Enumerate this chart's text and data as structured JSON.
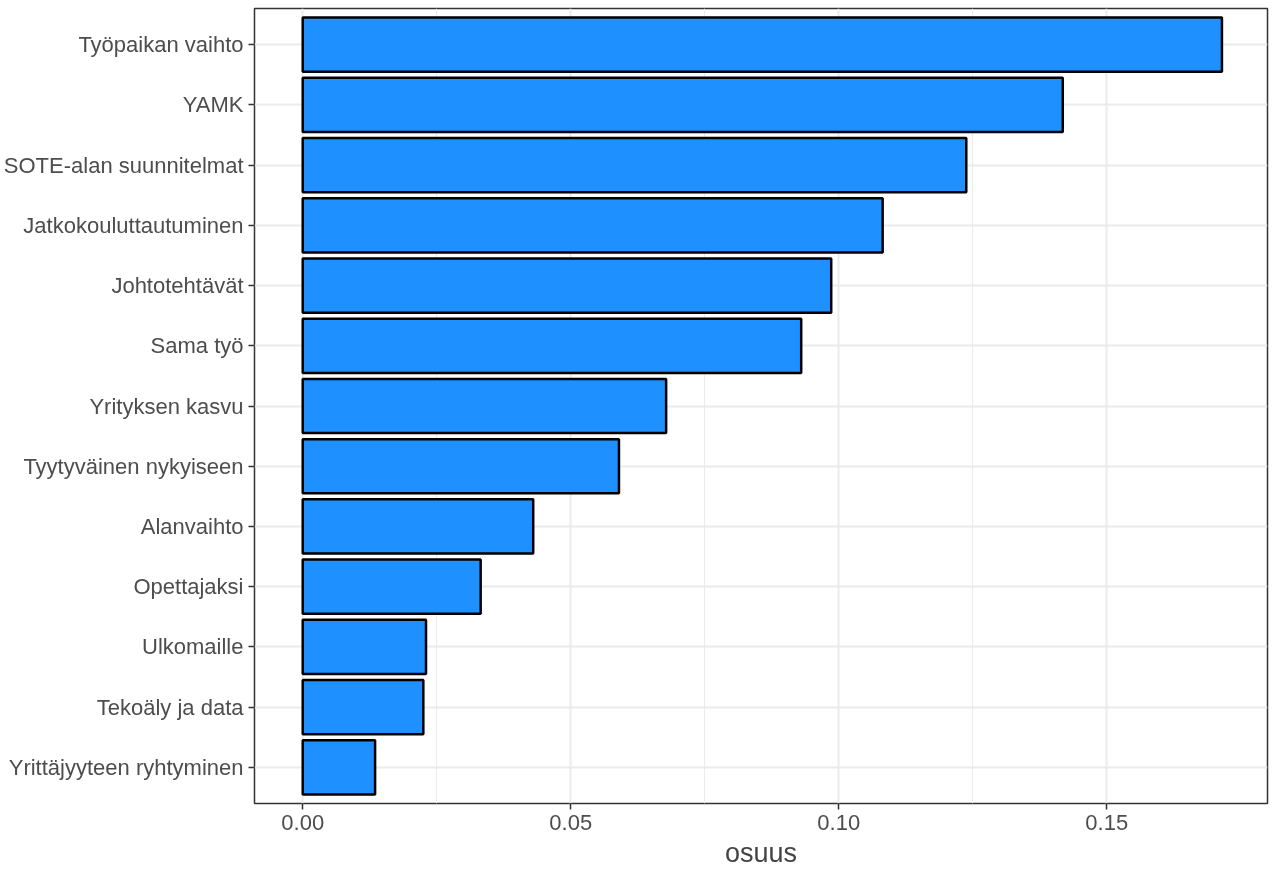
{
  "chart_data": {
    "type": "bar",
    "orientation": "horizontal",
    "xlabel": "osuus",
    "categories": [
      "Työpaikan vaihto",
      "YAMK",
      "SOTE-alan suunnitelmat",
      "Jatkokouluttautuminen",
      "Johtotehtävät",
      "Sama työ",
      "Yrityksen kasvu",
      "Tyytyväinen nykyiseen",
      "Alanvaihto",
      "Opettajaksi",
      "Ulkomaille",
      "Tekoäly ja data",
      "Yrittäjyyteen ryhtyminen"
    ],
    "values": [
      0.1715,
      0.1418,
      0.1238,
      0.1082,
      0.0986,
      0.093,
      0.0678,
      0.059,
      0.043,
      0.0332,
      0.023,
      0.0225,
      0.0135
    ],
    "color": "#1e90ff",
    "xlim": [
      -0.009,
      0.18
    ],
    "xticks": [
      {
        "value": 0,
        "label": "0.00"
      },
      0.05,
      {
        "value": 0.1,
        "label": "0.10"
      },
      0.15
    ],
    "grid": true
  }
}
